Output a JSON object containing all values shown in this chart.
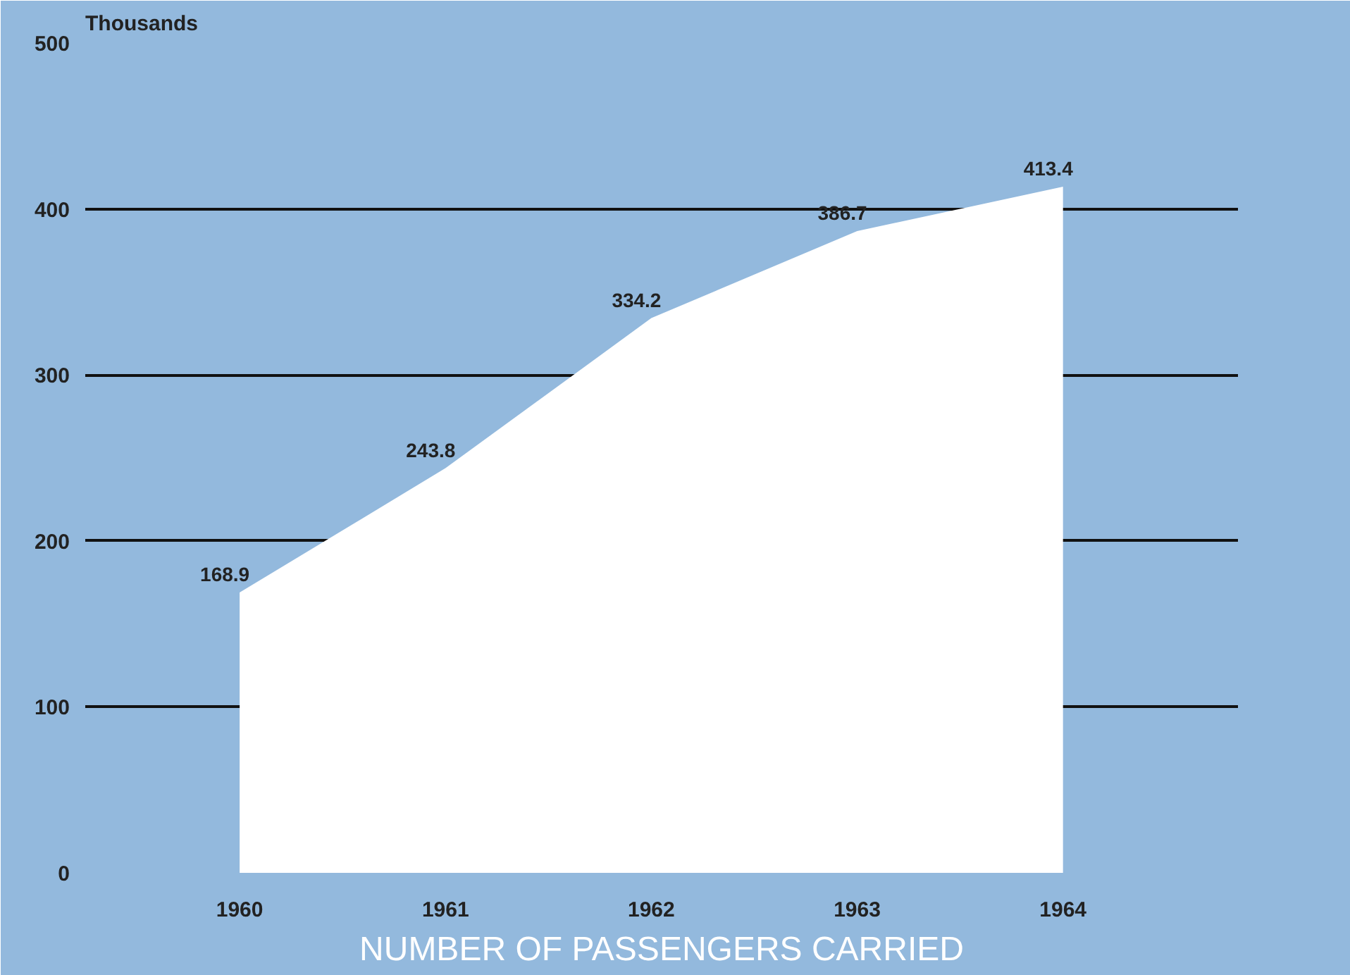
{
  "chart_data": {
    "type": "area",
    "title": "NUMBER OF PASSENGERS CARRIED",
    "ylabel": "Thousands",
    "categories": [
      "1960",
      "1961",
      "1962",
      "1963",
      "1964"
    ],
    "series": [
      {
        "color": "#ffffff",
        "values": [
          168.9,
          243.8,
          334.2,
          386.7,
          413.4
        ]
      }
    ],
    "ylim": [
      0,
      500
    ],
    "yticks": [
      0,
      100,
      200,
      300,
      400,
      500
    ],
    "grid": "y",
    "data_labels": true
  }
}
